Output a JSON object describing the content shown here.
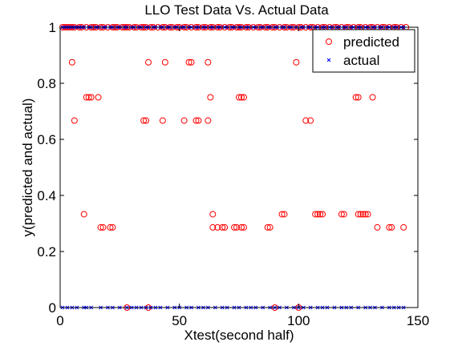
{
  "chart_data": {
    "type": "scatter",
    "title": "LLO Test Data Vs. Actual Data",
    "xlabel": "Xtest(second half)",
    "ylabel": "y(predicted and actual)",
    "xlim": [
      0,
      150
    ],
    "ylim": [
      0,
      1
    ],
    "xticks": [
      0,
      50,
      100,
      150
    ],
    "yticks": [
      0,
      0.2,
      0.4,
      0.6,
      0.8,
      1
    ],
    "xtick_labels": [
      "0",
      "50",
      "100",
      "150"
    ],
    "ytick_labels": [
      "0",
      "0.2",
      "0.4",
      "0.6",
      "0.8",
      "1"
    ],
    "grid": false,
    "legend_position": "top-right",
    "series": [
      {
        "name": "predicted",
        "marker": "circle",
        "color": "#ff0000",
        "x": [
          1,
          2,
          3,
          4,
          5,
          6,
          8,
          9,
          11,
          13,
          14,
          15,
          17,
          18,
          20,
          22,
          23,
          24,
          26,
          27,
          28,
          29,
          31,
          32,
          34,
          35,
          36,
          38,
          39,
          41,
          43,
          44,
          46,
          47,
          49,
          50,
          52,
          53,
          55,
          57,
          58,
          60,
          61,
          63,
          64,
          66,
          67,
          69,
          71,
          72,
          74,
          75,
          76,
          78,
          79,
          81,
          83,
          84,
          86,
          87,
          89,
          90,
          92,
          94,
          95,
          97,
          98,
          100,
          101,
          103,
          105,
          106,
          108,
          110,
          111,
          113,
          115,
          116,
          118,
          120,
          121,
          123,
          125,
          126,
          128,
          130,
          131,
          133,
          135,
          136,
          138,
          140,
          141,
          143,
          145,
          5,
          37,
          44,
          54,
          55,
          62,
          99,
          11,
          12,
          13,
          16,
          63,
          75,
          76,
          77,
          124,
          125,
          131,
          6,
          35,
          36,
          43,
          52,
          57,
          58,
          62,
          103,
          105,
          10,
          64,
          93,
          94,
          107,
          108,
          109,
          110,
          118,
          119,
          125,
          126,
          127,
          128,
          129,
          17,
          18,
          21,
          22,
          64,
          66,
          68,
          69,
          73,
          74,
          76,
          77,
          87,
          88,
          133,
          138,
          139,
          144,
          28,
          37,
          90,
          100
        ],
        "y": [
          1,
          1,
          1,
          1,
          1,
          1,
          1,
          1,
          1,
          1,
          1,
          1,
          1,
          1,
          1,
          1,
          1,
          1,
          1,
          1,
          1,
          1,
          1,
          1,
          1,
          1,
          1,
          1,
          1,
          1,
          1,
          1,
          1,
          1,
          1,
          1,
          1,
          1,
          1,
          1,
          1,
          1,
          1,
          1,
          1,
          1,
          1,
          1,
          1,
          1,
          1,
          1,
          1,
          1,
          1,
          1,
          1,
          1,
          1,
          1,
          1,
          1,
          1,
          1,
          1,
          1,
          1,
          1,
          1,
          1,
          1,
          1,
          1,
          1,
          1,
          1,
          1,
          1,
          1,
          1,
          1,
          1,
          1,
          1,
          1,
          1,
          1,
          1,
          1,
          1,
          1,
          1,
          1,
          1,
          1,
          0.875,
          0.875,
          0.875,
          0.875,
          0.875,
          0.875,
          0.875,
          0.75,
          0.75,
          0.75,
          0.75,
          0.75,
          0.75,
          0.75,
          0.75,
          0.75,
          0.75,
          0.75,
          0.667,
          0.667,
          0.667,
          0.667,
          0.667,
          0.667,
          0.667,
          0.667,
          0.667,
          0.667,
          0.333,
          0.333,
          0.333,
          0.333,
          0.333,
          0.333,
          0.333,
          0.333,
          0.333,
          0.333,
          0.333,
          0.333,
          0.333,
          0.333,
          0.333,
          0.286,
          0.286,
          0.286,
          0.286,
          0.286,
          0.286,
          0.286,
          0.286,
          0.286,
          0.286,
          0.286,
          0.286,
          0.286,
          0.286,
          0.286,
          0.286,
          0.286,
          0.286,
          0,
          0,
          0,
          0
        ]
      },
      {
        "name": "actual",
        "marker": "x",
        "color": "#0000ff",
        "x": [
          1,
          2,
          3,
          4,
          5,
          6,
          7,
          8,
          9,
          10,
          12,
          13,
          15,
          16,
          18,
          19,
          21,
          22,
          24,
          25,
          27,
          28,
          30,
          31,
          33,
          34,
          36,
          37,
          39,
          40,
          42,
          43,
          45,
          46,
          48,
          49,
          51,
          52,
          54,
          55,
          57,
          58,
          60,
          61,
          63,
          64,
          66,
          67,
          69,
          70,
          72,
          73,
          75,
          76,
          78,
          79,
          81,
          82,
          84,
          85,
          87,
          88,
          90,
          91,
          93,
          94,
          96,
          97,
          99,
          101,
          102,
          104,
          105,
          107,
          108,
          110,
          111,
          113,
          114,
          116,
          117,
          119,
          120,
          122,
          123,
          125,
          126,
          128,
          129,
          131,
          132,
          134,
          135,
          137,
          138,
          140,
          141,
          143,
          144,
          1,
          3,
          5,
          7,
          10,
          11,
          13,
          17,
          20,
          22,
          25,
          28,
          30,
          32,
          34,
          36,
          38,
          40,
          42,
          45,
          48,
          50,
          53,
          55,
          58,
          60,
          62,
          65,
          68,
          70,
          73,
          75,
          78,
          80,
          82,
          85,
          88,
          90,
          92,
          95,
          98,
          100,
          102,
          105,
          108,
          110,
          112,
          115,
          118,
          120,
          122,
          125,
          128,
          130,
          132,
          135,
          138,
          140,
          142,
          144
        ],
        "y": [
          1,
          1,
          1,
          1,
          1,
          1,
          1,
          1,
          1,
          1,
          1,
          1,
          1,
          1,
          1,
          1,
          1,
          1,
          1,
          1,
          1,
          1,
          1,
          1,
          1,
          1,
          1,
          1,
          1,
          1,
          1,
          1,
          1,
          1,
          1,
          1,
          1,
          1,
          1,
          1,
          1,
          1,
          1,
          1,
          1,
          1,
          1,
          1,
          1,
          1,
          1,
          1,
          1,
          1,
          1,
          1,
          1,
          1,
          1,
          1,
          1,
          1,
          1,
          1,
          1,
          1,
          1,
          1,
          1,
          1,
          1,
          1,
          1,
          1,
          1,
          1,
          1,
          1,
          1,
          1,
          1,
          1,
          1,
          1,
          1,
          1,
          1,
          1,
          1,
          1,
          1,
          1,
          1,
          1,
          1,
          1,
          1,
          1,
          1,
          0,
          0,
          0,
          0,
          0,
          0,
          0,
          0,
          0,
          0,
          0,
          0,
          0,
          0,
          0,
          0,
          0,
          0,
          0,
          0,
          0,
          0,
          0,
          0,
          0,
          0,
          0,
          0,
          0,
          0,
          0,
          0,
          0,
          0,
          0,
          0,
          0,
          0,
          0,
          0,
          0,
          0,
          0,
          0,
          0,
          0,
          0,
          0,
          0,
          0,
          0,
          0,
          0,
          0,
          0,
          0,
          0,
          0,
          0,
          0
        ]
      }
    ]
  }
}
